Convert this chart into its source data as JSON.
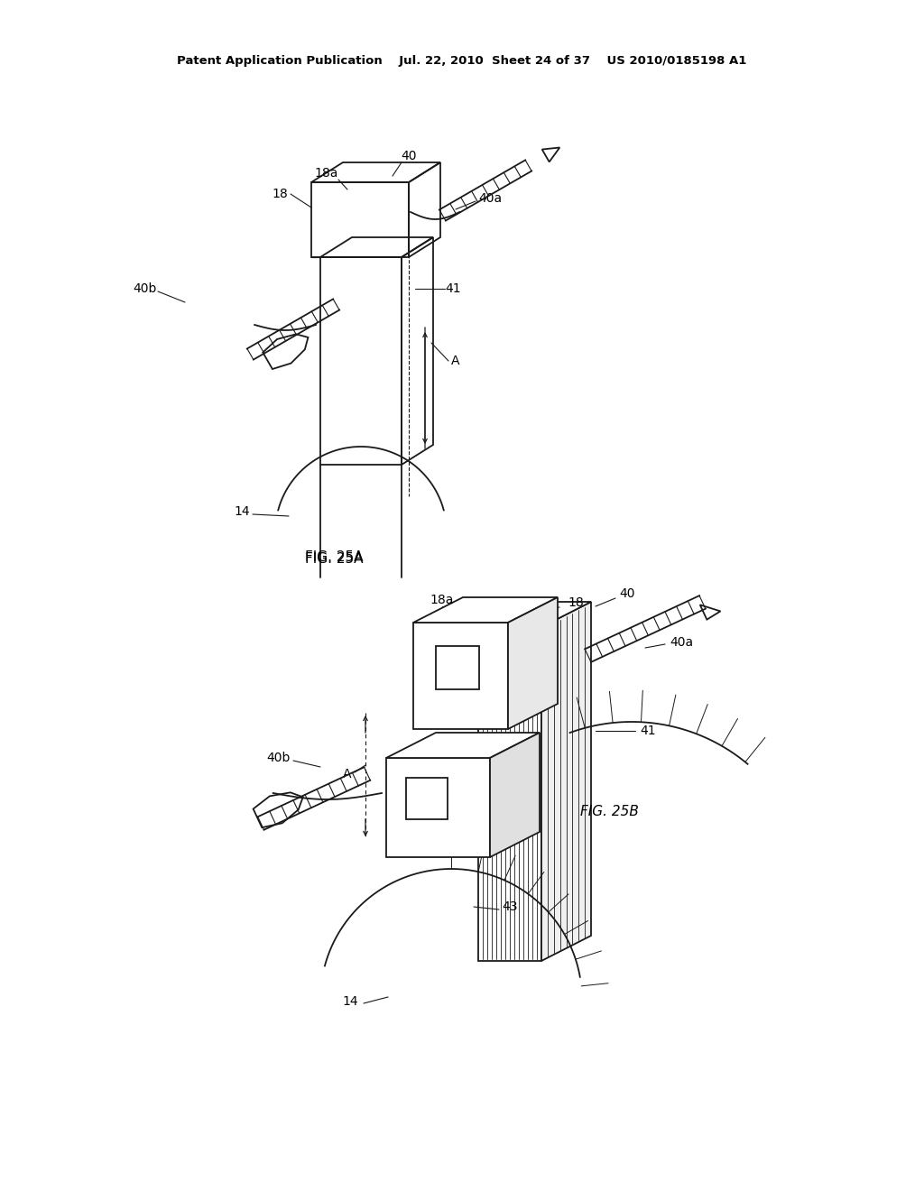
{
  "bg_color": "#ffffff",
  "line_color": "#1a1a1a",
  "header": "Patent Application Publication    Jul. 22, 2010  Sheet 24 of 37    US 2010/0185198 A1",
  "fig25a_label": "FIG. 25A",
  "fig25b_label": "FIG. 25B"
}
